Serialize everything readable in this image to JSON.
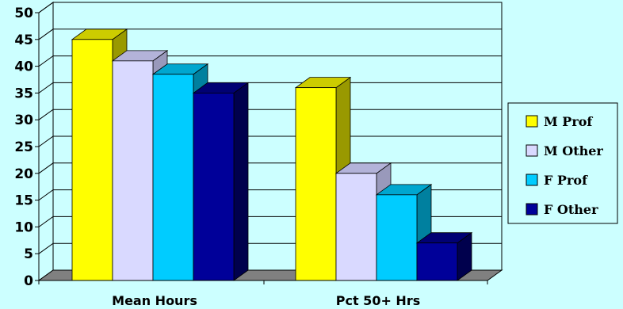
{
  "chart_data": {
    "type": "bar",
    "title": "",
    "xlabel": "",
    "ylabel": "",
    "categories": [
      "Mean Hours",
      "Pct 50+ Hrs"
    ],
    "series": [
      {
        "name": "M Prof",
        "values": [
          45,
          36
        ],
        "color": "#ffff00",
        "side": "#999900",
        "top": "#cccc00"
      },
      {
        "name": "M Other",
        "values": [
          41,
          20
        ],
        "color": "#d9d9ff",
        "side": "#9999bb",
        "top": "#b3b3d9"
      },
      {
        "name": "F Prof",
        "values": [
          38.5,
          16
        ],
        "color": "#00ccff",
        "side": "#00809f",
        "top": "#00a6cf"
      },
      {
        "name": "F Other",
        "values": [
          35,
          7
        ],
        "color": "#000099",
        "side": "#00004d",
        "top": "#000073"
      }
    ],
    "ylim": [
      0,
      50
    ],
    "yticks": [
      0,
      5,
      10,
      15,
      20,
      25,
      30,
      35,
      40,
      45,
      50
    ],
    "grid": true,
    "legend_position": "right"
  }
}
